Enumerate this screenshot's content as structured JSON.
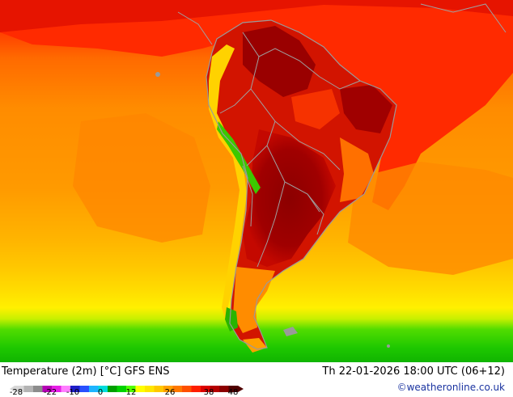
{
  "title": "Temperature (2m) [°C] GFS ENS",
  "valid_time": "Th 22-01-2026 18:00 UTC (06+12)",
  "credit": "©weatheronline.co.uk",
  "legend": {
    "ticks": [
      "-28",
      "-22",
      "-10",
      "0",
      "12",
      "26",
      "38",
      "48"
    ],
    "colors": [
      "#d7d7d7",
      "#b4b4b4",
      "#8c8c8c",
      "#b400b4",
      "#e61ee6",
      "#ff7dff",
      "#1e1ec8",
      "#2850ff",
      "#1eb4ff",
      "#00dcdc",
      "#00a000",
      "#00d200",
      "#50ff00",
      "#ffff00",
      "#ffe600",
      "#ffc800",
      "#ffa000",
      "#ff7800",
      "#ff5000",
      "#ff1e00",
      "#dc0000",
      "#b40000",
      "#8c0000",
      "#500000"
    ]
  },
  "map_colors": {
    "ocean_north": "#ff2a00",
    "ocean_orange": "#ff7a00",
    "ocean_mid": "#ff9a00",
    "ocean_south": "#ffbe00",
    "yellow_band": "#ffe600",
    "green_band": "#3cd200",
    "green_dark": "#00b400",
    "land_hot": "#c40a00",
    "land_hottest": "#8c0000",
    "border_color": "#a0a0a0"
  }
}
